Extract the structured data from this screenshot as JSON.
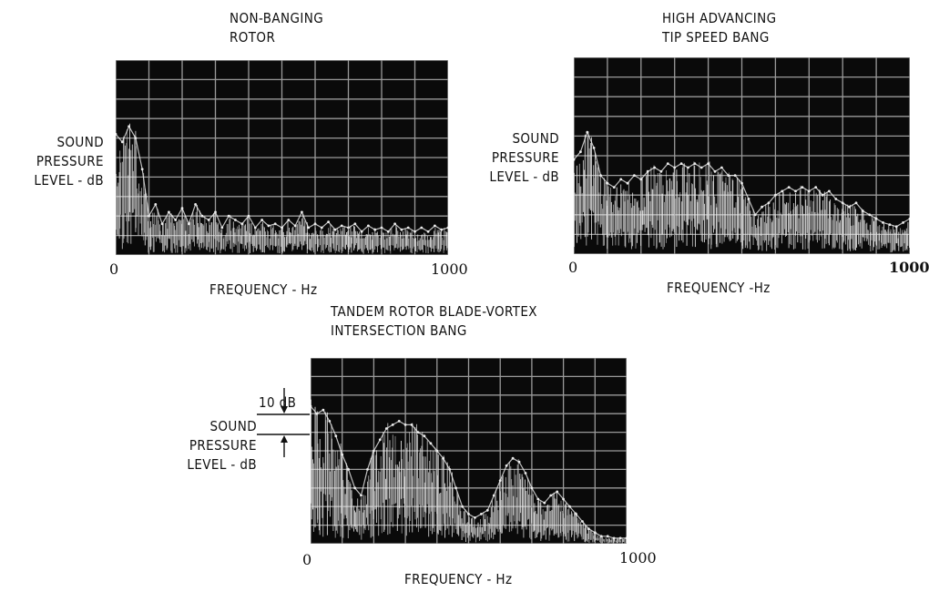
{
  "chart_data": [
    {
      "type": "area",
      "title": "NON-BANGING\nROTOR",
      "xlabel": "FREQUENCY - Hz",
      "ylabel": "SOUND\nPRESSURE\nLEVEL - dB",
      "xlim": [
        0,
        1000
      ],
      "x_tick_labels": [
        "0",
        "1000"
      ],
      "grid": true,
      "background": "#0a0a0a",
      "trace_color": "#ececec",
      "series": [
        {
          "x": [
            0,
            20,
            40,
            60,
            80,
            100,
            120,
            140,
            160,
            180,
            200,
            220,
            240,
            260,
            280,
            300,
            320,
            340,
            360,
            380,
            400,
            420,
            440,
            460,
            480,
            500,
            520,
            540,
            560,
            580,
            600,
            620,
            640,
            660,
            680,
            700,
            720,
            740,
            760,
            780,
            800,
            820,
            840,
            860,
            880,
            900,
            920,
            940,
            960,
            980,
            1000
          ],
          "values": [
            0.62,
            0.58,
            0.66,
            0.6,
            0.44,
            0.2,
            0.26,
            0.16,
            0.22,
            0.18,
            0.24,
            0.16,
            0.26,
            0.2,
            0.18,
            0.22,
            0.14,
            0.2,
            0.18,
            0.16,
            0.2,
            0.14,
            0.18,
            0.15,
            0.16,
            0.14,
            0.18,
            0.15,
            0.22,
            0.14,
            0.16,
            0.14,
            0.17,
            0.13,
            0.15,
            0.14,
            0.16,
            0.12,
            0.15,
            0.13,
            0.14,
            0.12,
            0.16,
            0.13,
            0.14,
            0.12,
            0.14,
            0.12,
            0.15,
            0.13,
            0.14
          ]
        }
      ]
    },
    {
      "type": "area",
      "title": "HIGH ADVANCING\nTIP SPEED BANG",
      "xlabel": "FREQUENCY -Hz",
      "ylabel": "SOUND\nPRESSURE\nLEVEL - dB",
      "xlim": [
        0,
        1000
      ],
      "x_tick_labels": [
        "0",
        "1000"
      ],
      "grid": true,
      "background": "#0a0a0a",
      "trace_color": "#ececec",
      "series": [
        {
          "x": [
            0,
            20,
            40,
            60,
            80,
            100,
            120,
            140,
            160,
            180,
            200,
            220,
            240,
            260,
            280,
            300,
            320,
            340,
            360,
            380,
            400,
            420,
            440,
            460,
            480,
            500,
            520,
            540,
            560,
            580,
            600,
            620,
            640,
            660,
            680,
            700,
            720,
            740,
            760,
            780,
            800,
            820,
            840,
            860,
            880,
            900,
            920,
            940,
            960,
            980,
            1000
          ],
          "values": [
            0.48,
            0.52,
            0.62,
            0.54,
            0.4,
            0.36,
            0.34,
            0.38,
            0.36,
            0.4,
            0.38,
            0.42,
            0.44,
            0.42,
            0.46,
            0.44,
            0.46,
            0.44,
            0.46,
            0.44,
            0.46,
            0.42,
            0.44,
            0.4,
            0.4,
            0.36,
            0.28,
            0.2,
            0.24,
            0.26,
            0.3,
            0.32,
            0.34,
            0.32,
            0.34,
            0.32,
            0.34,
            0.3,
            0.32,
            0.28,
            0.26,
            0.24,
            0.26,
            0.22,
            0.2,
            0.18,
            0.16,
            0.15,
            0.14,
            0.16,
            0.18
          ]
        }
      ]
    },
    {
      "type": "area",
      "title": "TANDEM ROTOR BLADE-VORTEX\nINTERSECTION BANG",
      "xlabel": "FREQUENCY - Hz",
      "ylabel": "SOUND\nPRESSURE\nLEVEL - dB",
      "scale_bar_label": "10 dB",
      "xlim": [
        0,
        1000
      ],
      "x_tick_labels": [
        "0",
        "1000"
      ],
      "grid": true,
      "background": "#0a0a0a",
      "trace_color": "#ececec",
      "series": [
        {
          "x": [
            0,
            20,
            40,
            60,
            80,
            100,
            120,
            140,
            160,
            180,
            200,
            220,
            240,
            260,
            280,
            300,
            320,
            340,
            360,
            380,
            400,
            420,
            440,
            460,
            480,
            500,
            520,
            540,
            560,
            580,
            600,
            620,
            640,
            660,
            680,
            700,
            720,
            740,
            760,
            780,
            800,
            820,
            840,
            860,
            880,
            900,
            920,
            940,
            960,
            980,
            1000
          ],
          "values": [
            0.74,
            0.7,
            0.72,
            0.66,
            0.58,
            0.48,
            0.4,
            0.3,
            0.26,
            0.4,
            0.5,
            0.56,
            0.62,
            0.64,
            0.66,
            0.64,
            0.64,
            0.6,
            0.58,
            0.54,
            0.5,
            0.46,
            0.4,
            0.3,
            0.2,
            0.16,
            0.14,
            0.16,
            0.18,
            0.26,
            0.34,
            0.42,
            0.46,
            0.44,
            0.38,
            0.3,
            0.24,
            0.22,
            0.26,
            0.28,
            0.24,
            0.2,
            0.16,
            0.12,
            0.08,
            0.06,
            0.04,
            0.04,
            0.03,
            0.03,
            0.03
          ]
        }
      ]
    }
  ]
}
